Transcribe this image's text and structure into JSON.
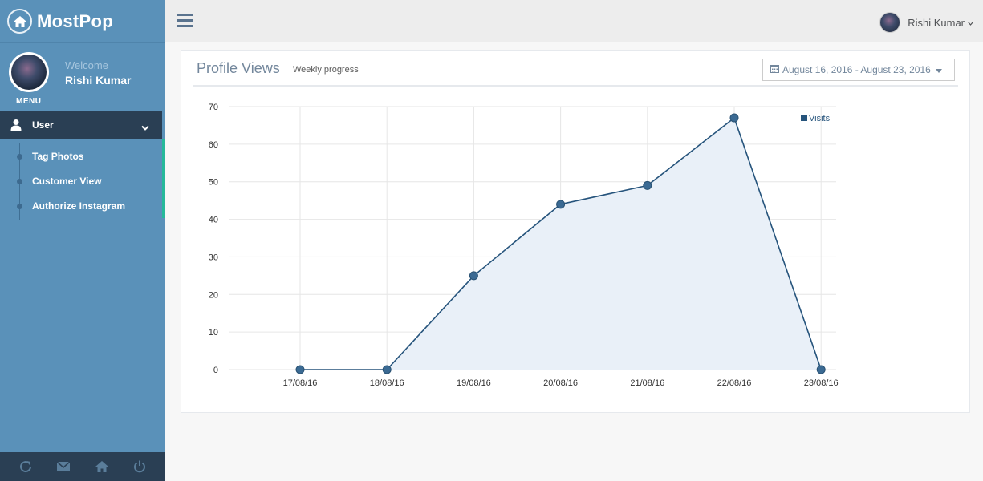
{
  "brand": {
    "name": "MostPop",
    "icon": "home-icon"
  },
  "profile": {
    "welcome": "Welcome",
    "name": "Rishi Kumar",
    "menu_label": "MENU"
  },
  "sidebar": {
    "section": {
      "label": "User",
      "icon": "user-icon"
    },
    "items": [
      {
        "label": "Tag Photos"
      },
      {
        "label": "Customer View"
      },
      {
        "label": "Authorize Instagram"
      }
    ],
    "footer_icons": [
      "refresh-icon",
      "envelope-icon",
      "home-icon",
      "power-icon"
    ]
  },
  "topbar": {
    "user_name": "Rishi Kumar"
  },
  "panel": {
    "title": "Profile Views",
    "subtitle": "Weekly progress",
    "date_range": "August 16, 2016 - August 23, 2016"
  },
  "colors": {
    "sidebar": "#5a91b9",
    "sidebar_dark": "#2a3f54",
    "active_indicator": "#26b99a",
    "series_line": "#26547c",
    "series_fill": "#e9f0f8"
  },
  "chart_data": {
    "type": "area",
    "categories": [
      "17/08/16",
      "18/08/16",
      "19/08/16",
      "20/08/16",
      "21/08/16",
      "22/08/16",
      "23/08/16"
    ],
    "x": [
      0.16,
      1.16,
      2.16,
      3.16,
      4.16,
      5.16,
      6.16
    ],
    "series": [
      {
        "name": "Visits",
        "values": [
          0,
          0,
          25,
          44,
          49,
          67,
          0
        ]
      }
    ],
    "ylim": [
      0,
      70
    ],
    "yticks": [
      0,
      10,
      20,
      30,
      40,
      50,
      60,
      70
    ],
    "grid": true,
    "legend_position": "top-right"
  }
}
